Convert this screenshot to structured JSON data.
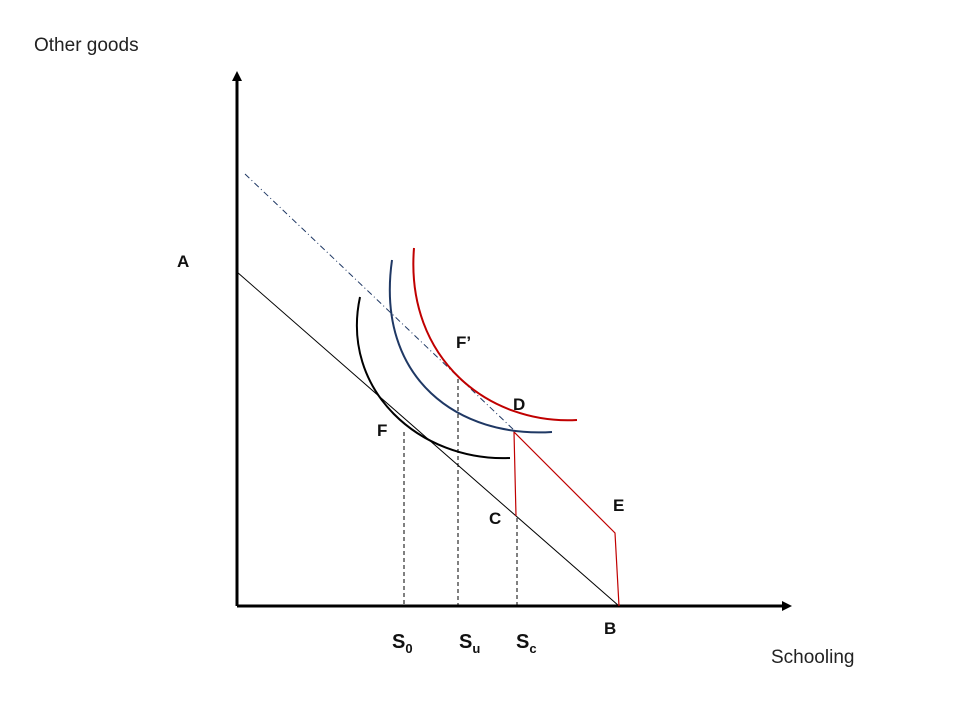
{
  "axes": {
    "y_title": "Other goods",
    "x_title": "Schooling"
  },
  "points": {
    "A": "A",
    "B": "B",
    "C": "C",
    "D": "D",
    "E": "E",
    "F": "F",
    "F_prime": "F’"
  },
  "ticks": {
    "s0": {
      "main": "S",
      "sub": "0"
    },
    "su": {
      "main": "S",
      "sub": "u"
    },
    "sc": {
      "main": "S",
      "sub": "c"
    }
  },
  "colors": {
    "red": "#c00000",
    "blue": "#1f3864",
    "black": "#000000"
  }
}
